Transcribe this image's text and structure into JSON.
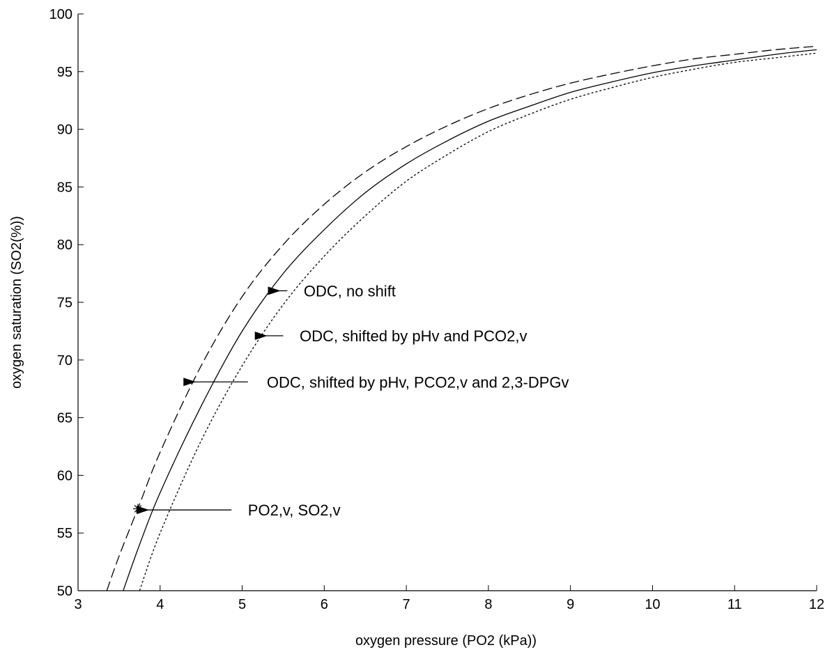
{
  "chart_data": {
    "type": "line",
    "xlabel": "oxygen pressure (PO2 (kPa))",
    "ylabel": "oxygen saturation (SO2(%))",
    "xlim": [
      3,
      12
    ],
    "ylim": [
      50,
      100
    ],
    "x_ticks": [
      "3",
      "4",
      "5",
      "6",
      "7",
      "8",
      "9",
      "10",
      "11",
      "12"
    ],
    "y_ticks": [
      "50",
      "55",
      "60",
      "65",
      "70",
      "75",
      "80",
      "85",
      "90",
      "95",
      "100"
    ],
    "grid": false,
    "series": [
      {
        "style": "dashed",
        "x": [
          3.35,
          3.5,
          3.75,
          4.0,
          4.5,
          5.0,
          5.5,
          6.0,
          6.5,
          7.0,
          7.5,
          8.0,
          8.5,
          9.0,
          9.5,
          10.0,
          10.5,
          11.0,
          11.5,
          12.0
        ],
        "y": [
          50.0,
          53.0,
          57.5,
          62.0,
          69.5,
          75.5,
          80.0,
          83.5,
          86.3,
          88.5,
          90.3,
          91.8,
          93.0,
          94.0,
          94.8,
          95.5,
          96.1,
          96.5,
          96.9,
          97.2
        ]
      },
      {
        "style": "solid",
        "x": [
          3.55,
          3.75,
          4.0,
          4.5,
          5.0,
          5.5,
          6.0,
          6.5,
          7.0,
          7.5,
          8.0,
          8.5,
          9.0,
          9.5,
          10.0,
          10.5,
          11.0,
          11.5,
          12.0
        ],
        "y": [
          50.0,
          54.0,
          58.5,
          66.0,
          72.5,
          77.5,
          81.3,
          84.5,
          87.0,
          89.0,
          90.7,
          92.0,
          93.2,
          94.1,
          94.9,
          95.5,
          96.0,
          96.5,
          96.9
        ]
      },
      {
        "style": "dotted",
        "x": [
          3.75,
          4.0,
          4.5,
          5.0,
          5.5,
          6.0,
          6.5,
          7.0,
          7.5,
          8.0,
          8.5,
          9.0,
          9.5,
          10.0,
          10.5,
          11.0,
          11.5,
          12.0
        ],
        "y": [
          50.0,
          55.0,
          63.0,
          69.5,
          74.8,
          79.0,
          82.5,
          85.5,
          87.8,
          89.8,
          91.3,
          92.6,
          93.6,
          94.5,
          95.2,
          95.8,
          96.2,
          96.6
        ]
      }
    ],
    "marker_point": {
      "x": 3.73,
      "y": 57.1,
      "symbol": "*"
    },
    "annotations": [
      {
        "text": "ODC, no shift",
        "text_x": 5.75,
        "y": 76.0,
        "arrow_from_x": 5.55,
        "arrow_to_x": 5.45
      },
      {
        "text": "ODC, shifted by pHv and PCO2,v",
        "text_x": 5.7,
        "y": 72.1,
        "arrow_from_x": 5.5,
        "arrow_to_x": 5.29
      },
      {
        "text": "ODC, shifted by pHv, PCO2,v and 2,3-DPGv",
        "text_x": 5.3,
        "y": 68.1,
        "arrow_from_x": 5.07,
        "arrow_to_x": 4.42
      },
      {
        "text": "PO2,v, SO2,v",
        "text_x": 5.07,
        "y": 57.0,
        "arrow_from_x": 4.87,
        "arrow_to_x": 3.85
      }
    ]
  }
}
